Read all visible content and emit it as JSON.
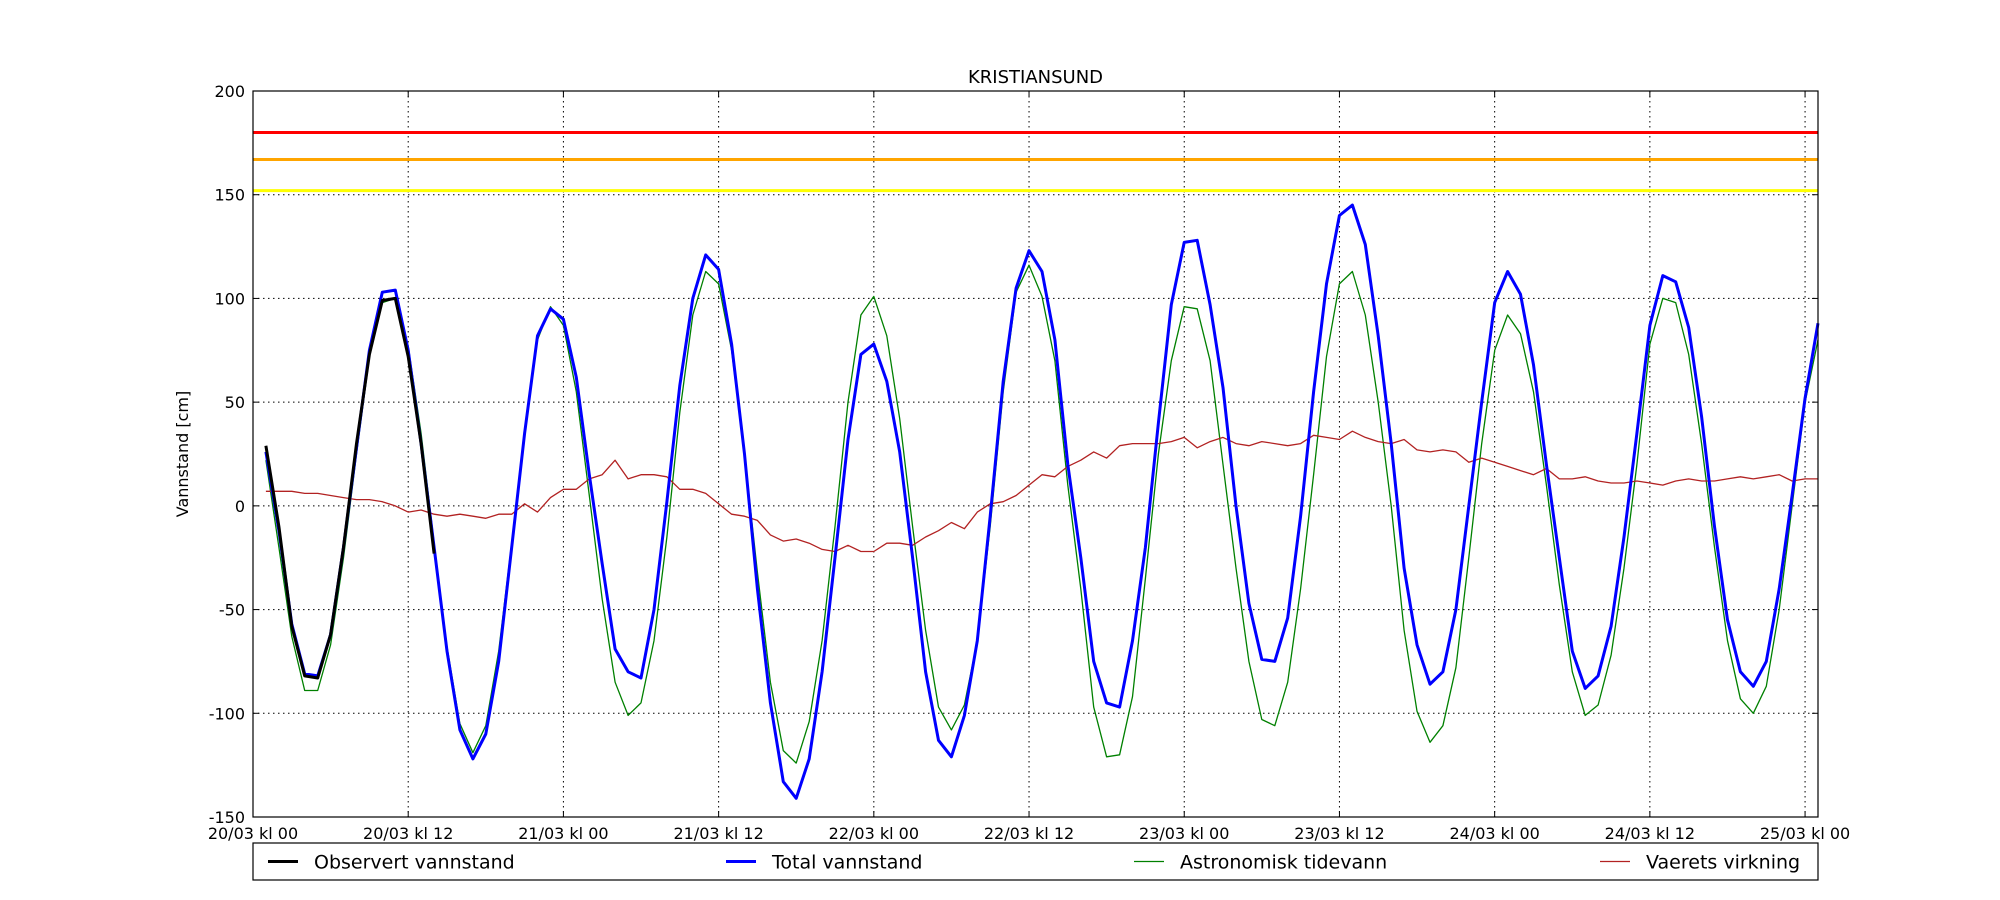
{
  "chart_data": {
    "type": "line",
    "title": "KRISTIANSUND",
    "ylabel": "Vannstand [cm]",
    "xlabel": "",
    "ylim": [
      -150,
      200
    ],
    "xlim": [
      0,
      121
    ],
    "grid": true,
    "legend_position": "below-plot",
    "y_ticks": [
      -150,
      -100,
      -50,
      0,
      50,
      100,
      150,
      200
    ],
    "x_ticks": [
      {
        "x": 0,
        "label": "20/03 kl 00"
      },
      {
        "x": 12,
        "label": "20/03 kl 12"
      },
      {
        "x": 24,
        "label": "21/03 kl 00"
      },
      {
        "x": 36,
        "label": "21/03 kl 12"
      },
      {
        "x": 48,
        "label": "22/03 kl 00"
      },
      {
        "x": 60,
        "label": "22/03 kl 12"
      },
      {
        "x": 72,
        "label": "23/03 kl 00"
      },
      {
        "x": 84,
        "label": "23/03 kl 12"
      },
      {
        "x": 96,
        "label": "24/03 kl 00"
      },
      {
        "x": 108,
        "label": "24/03 kl 12"
      },
      {
        "x": 120,
        "label": "25/03 kl 00"
      }
    ],
    "thresholds": [
      {
        "value": 180,
        "color": "#ff0000"
      },
      {
        "value": 167,
        "color": "#ffa500"
      },
      {
        "value": 152,
        "color": "#ffff00"
      }
    ],
    "series": [
      {
        "name": "Observert vannstand",
        "color": "#000000",
        "width": 3,
        "x": [
          1,
          2,
          3,
          4,
          5,
          6,
          7,
          8,
          9,
          10,
          11,
          12,
          13,
          14
        ],
        "y": [
          29,
          -10,
          -58,
          -82,
          -83,
          -62,
          -20,
          30,
          73,
          99,
          100,
          72,
          30,
          -23
        ]
      },
      {
        "name": "Total vannstand",
        "color": "#0000ff",
        "width": 3,
        "x": [
          1,
          2,
          3,
          4,
          5,
          6,
          7,
          8,
          9,
          10,
          11,
          12,
          13,
          14,
          15,
          16,
          17,
          18,
          19,
          20,
          21,
          22,
          23,
          24,
          25,
          26,
          27,
          28,
          29,
          30,
          31,
          32,
          33,
          34,
          35,
          36,
          37,
          38,
          39,
          40,
          41,
          42,
          43,
          44,
          45,
          46,
          47,
          48,
          49,
          50,
          51,
          52,
          53,
          54,
          55,
          56,
          57,
          58,
          59,
          60,
          61,
          62,
          63,
          64,
          65,
          66,
          67,
          68,
          69,
          70,
          71,
          72,
          73,
          74,
          75,
          76,
          77,
          78,
          79,
          80,
          81,
          82,
          83,
          84,
          85,
          86,
          87,
          88,
          89,
          90,
          91,
          92,
          93,
          94,
          95,
          96,
          97,
          98,
          99,
          100,
          101,
          102,
          103,
          104,
          105,
          106,
          107,
          108,
          109,
          110,
          111,
          112,
          113,
          114,
          115,
          116,
          117,
          118,
          119,
          120,
          121
        ],
        "y": [
          26,
          -12,
          -57,
          -81,
          -82,
          -62,
          -20,
          28,
          75,
          103,
          104,
          75,
          30,
          -20,
          -70,
          -108,
          -122,
          -110,
          -75,
          -20,
          35,
          82,
          95,
          90,
          62,
          15,
          -28,
          -69,
          -80,
          -83,
          -50,
          2,
          58,
          100,
          121,
          114,
          78,
          25,
          -40,
          -95,
          -133,
          -141,
          -122,
          -80,
          -25,
          32,
          73,
          78,
          60,
          26,
          -25,
          -80,
          -113,
          -121,
          -101,
          -65,
          -5,
          60,
          105,
          123,
          113,
          80,
          20,
          -25,
          -75,
          -95,
          -97,
          -65,
          -20,
          40,
          97,
          127,
          128,
          97,
          57,
          0,
          -47,
          -74,
          -75,
          -54,
          -5,
          55,
          107,
          140,
          145,
          126,
          82,
          30,
          -30,
          -67,
          -86,
          -80,
          -50,
          0,
          50,
          98,
          113,
          102,
          68,
          20,
          -25,
          -70,
          -88,
          -82,
          -58,
          -15,
          35,
          87,
          111,
          108,
          86,
          43,
          -10,
          -55,
          -80,
          -87,
          -75,
          -40,
          5,
          52,
          88
        ]
      },
      {
        "name": "Astronomisk tidevann",
        "color": "#008000",
        "width": 1.3,
        "x": [
          1,
          2,
          3,
          4,
          5,
          6,
          7,
          8,
          9,
          10,
          11,
          12,
          13,
          14,
          15,
          16,
          17,
          18,
          19,
          20,
          21,
          22,
          23,
          24,
          25,
          26,
          27,
          28,
          29,
          30,
          31,
          32,
          33,
          34,
          35,
          36,
          37,
          38,
          39,
          40,
          41,
          42,
          43,
          44,
          45,
          46,
          47,
          48,
          49,
          50,
          51,
          52,
          53,
          54,
          55,
          56,
          57,
          58,
          59,
          60,
          61,
          62,
          63,
          64,
          65,
          66,
          67,
          68,
          69,
          70,
          71,
          72,
          73,
          74,
          75,
          76,
          77,
          78,
          79,
          80,
          81,
          82,
          83,
          84,
          85,
          86,
          87,
          88,
          89,
          90,
          91,
          92,
          93,
          94,
          95,
          96,
          97,
          98,
          99,
          100,
          101,
          102,
          103,
          104,
          105,
          106,
          107,
          108,
          109,
          110,
          111,
          112,
          113,
          114,
          115,
          116,
          117,
          118,
          119,
          120,
          121
        ],
        "y": [
          22,
          -20,
          -63,
          -89,
          -89,
          -67,
          -25,
          25,
          72,
          98,
          100,
          77,
          35,
          -18,
          -68,
          -105,
          -119,
          -106,
          -70,
          -18,
          35,
          80,
          96,
          87,
          55,
          5,
          -45,
          -85,
          -101,
          -95,
          -65,
          -15,
          45,
          92,
          113,
          107,
          75,
          25,
          -32,
          -85,
          -118,
          -124,
          -104,
          -65,
          -10,
          50,
          92,
          101,
          82,
          42,
          -10,
          -60,
          -97,
          -108,
          -96,
          -65,
          -10,
          55,
          103,
          116,
          101,
          70,
          10,
          -40,
          -97,
          -121,
          -120,
          -92,
          -35,
          25,
          70,
          96,
          95,
          70,
          20,
          -30,
          -75,
          -103,
          -106,
          -85,
          -40,
          15,
          72,
          107,
          113,
          92,
          50,
          0,
          -60,
          -99,
          -114,
          -106,
          -78,
          -25,
          30,
          75,
          92,
          83,
          55,
          10,
          -38,
          -80,
          -101,
          -96,
          -72,
          -30,
          20,
          78,
          100,
          98,
          73,
          30,
          -20,
          -65,
          -93,
          -100,
          -87,
          -50,
          0,
          50,
          80
        ]
      },
      {
        "name": "Vaerets virkning",
        "color": "#b22222",
        "width": 1.3,
        "x": [
          1,
          2,
          3,
          4,
          5,
          6,
          7,
          8,
          9,
          10,
          11,
          12,
          13,
          14,
          15,
          16,
          17,
          18,
          19,
          20,
          21,
          22,
          23,
          24,
          25,
          26,
          27,
          28,
          29,
          30,
          31,
          32,
          33,
          34,
          35,
          36,
          37,
          38,
          39,
          40,
          41,
          42,
          43,
          44,
          45,
          46,
          47,
          48,
          49,
          50,
          51,
          52,
          53,
          54,
          55,
          56,
          57,
          58,
          59,
          60,
          61,
          62,
          63,
          64,
          65,
          66,
          67,
          68,
          69,
          70,
          71,
          72,
          73,
          74,
          75,
          76,
          77,
          78,
          79,
          80,
          81,
          82,
          83,
          84,
          85,
          86,
          87,
          88,
          89,
          90,
          91,
          92,
          93,
          94,
          95,
          96,
          97,
          98,
          99,
          100,
          101,
          102,
          103,
          104,
          105,
          106,
          107,
          108,
          109,
          110,
          111,
          112,
          113,
          114,
          115,
          116,
          117,
          118,
          119,
          120,
          121
        ],
        "y": [
          7,
          7,
          7,
          6,
          6,
          5,
          4,
          3,
          3,
          2,
          0,
          -3,
          -2,
          -4,
          -5,
          -4,
          -5,
          -6,
          -4,
          -4,
          1,
          -3,
          4,
          8,
          8,
          13,
          15,
          22,
          13,
          15,
          15,
          14,
          8,
          8,
          6,
          1,
          -4,
          -5,
          -7,
          -14,
          -17,
          -16,
          -18,
          -21,
          -22,
          -19,
          -22,
          -22,
          -18,
          -18,
          -19,
          -15,
          -12,
          -8,
          -11,
          -3,
          1,
          2,
          5,
          10,
          15,
          14,
          19,
          22,
          26,
          23,
          29,
          30,
          30,
          30,
          31,
          33,
          28,
          31,
          33,
          30,
          29,
          31,
          30,
          29,
          30,
          34,
          33,
          32,
          36,
          33,
          31,
          30,
          32,
          27,
          26,
          27,
          26,
          21,
          23,
          21,
          19,
          17,
          15,
          18,
          13,
          13,
          14,
          12,
          11,
          11,
          12,
          11,
          10,
          12,
          13,
          12,
          12,
          13,
          14,
          13,
          14,
          15,
          12,
          13,
          13
        ]
      }
    ]
  }
}
